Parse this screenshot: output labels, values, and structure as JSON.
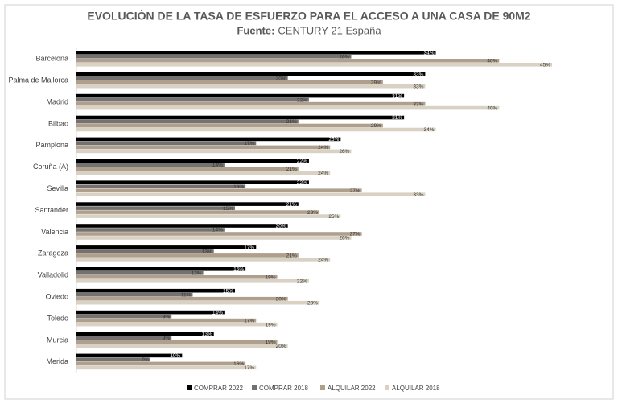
{
  "chart_data": {
    "type": "hbar",
    "title": "EVOLUCIÓN DE LA TASA DE ESFUERZO PARA EL ACCESO A UNA CASA DE 90M2",
    "subtitle_label": "Fuente:",
    "subtitle": "CENTURY 21 España",
    "categories": [
      "Barcelona",
      "Palma de Mallorca",
      "Madrid",
      "Bilbao",
      "Pamplona",
      "Coruña (A)",
      "Sevilla",
      "Santander",
      "Valencia",
      "Zaragoza",
      "Valladolid",
      "Oviedo",
      "Toledo",
      "Murcia",
      "Merida"
    ],
    "series": [
      {
        "name": "COMPRAR 2022",
        "color": "#000000",
        "values": [
          34,
          33,
          31,
          31,
          25,
          22,
          22,
          21,
          20,
          17,
          16,
          15,
          14,
          13,
          10
        ],
        "value_labels": [
          "34%",
          "33%",
          "31%",
          "31%",
          "25%",
          "22%",
          "22%",
          "21%",
          "20%",
          "17%",
          "16%",
          "15%",
          "14%",
          "13%",
          "10%"
        ]
      },
      {
        "name": "COMPRAR 2018",
        "color": "#767171",
        "values": [
          26,
          20,
          22,
          21,
          17,
          14,
          16,
          15,
          14,
          13,
          12,
          11,
          9,
          9,
          7
        ],
        "value_labels": [
          "26%",
          "20%",
          "22%",
          "21%",
          "17%",
          "14%",
          "16%",
          "15%",
          "14%",
          "13%",
          "12%",
          "11%",
          "9%",
          "9%",
          "7%"
        ]
      },
      {
        "name": "ALQUILAR 2022",
        "color": "#aea08c",
        "values": [
          40,
          29,
          33,
          29,
          24,
          21,
          27,
          23,
          27,
          21,
          19,
          20,
          17,
          19,
          16
        ],
        "value_labels": [
          "40%",
          "29%",
          "33%",
          "29%",
          "24%",
          "21%",
          "27%",
          "23%",
          "27%",
          "21%",
          "19%",
          "20%",
          "17%",
          "19%",
          "16%"
        ]
      },
      {
        "name": "ALQUILAR 2018",
        "color": "#d9d2c4",
        "values": [
          45,
          33,
          40,
          34,
          26,
          24,
          33,
          25,
          26,
          24,
          22,
          23,
          19,
          20,
          17
        ],
        "value_labels": [
          "45%",
          "33%",
          "40%",
          "34%",
          "26%",
          "24%",
          "33%",
          "25%",
          "26%",
          "24%",
          "22%",
          "23%",
          "19%",
          "20%",
          "17%"
        ]
      }
    ]
  }
}
